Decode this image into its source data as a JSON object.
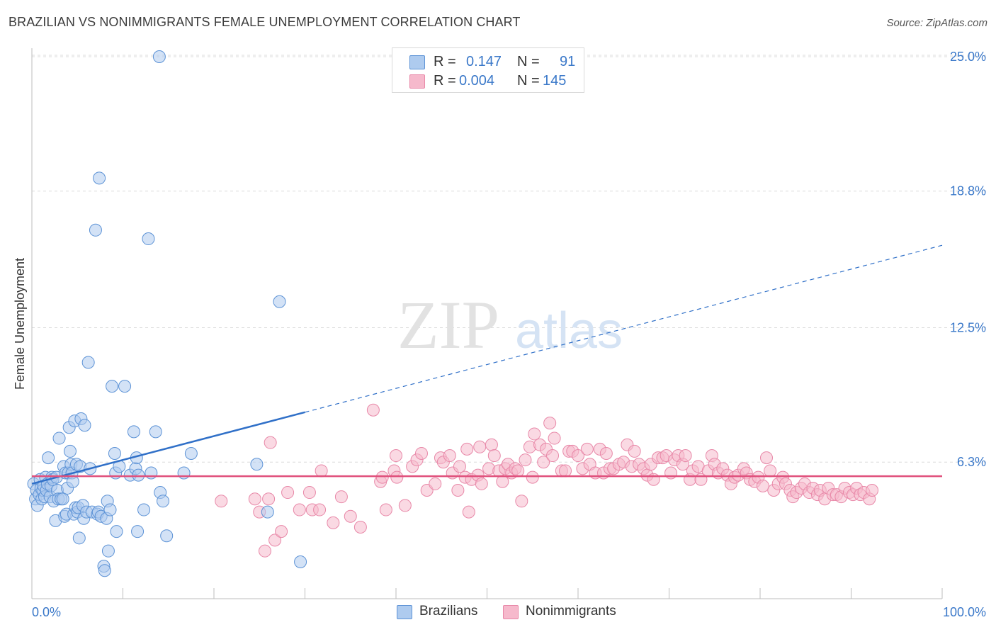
{
  "header": {
    "title": "BRAZILIAN VS NONIMMIGRANTS FEMALE UNEMPLOYMENT CORRELATION CHART",
    "source": "Source: ZipAtlas.com"
  },
  "legend_box": {
    "series_1": {
      "r_label": "R =",
      "r_value": "0.147",
      "n_label": "N =",
      "n_value": "91"
    },
    "series_2": {
      "r_label": "R =",
      "r_value": "0.004",
      "n_label": "N =",
      "n_value": "145"
    }
  },
  "bottom_legend": {
    "series_1": "Brazilians",
    "series_2": "Nonimmigrants"
  },
  "colors": {
    "blue_fill": "#aecbef",
    "blue_stroke": "#5d93d6",
    "blue_line": "#3070c8",
    "pink_fill": "#f6b9cc",
    "pink_stroke": "#e888a8",
    "pink_line": "#e0507c",
    "tick_text": "#3a78c9",
    "grid": "#dcdcdc"
  },
  "chart_data": {
    "type": "scatter",
    "title": "BRAZILIAN VS NONIMMIGRANTS FEMALE UNEMPLOYMENT CORRELATION CHART",
    "xlabel": "",
    "ylabel": "Female Unemployment",
    "xlim": [
      0,
      100
    ],
    "ylim": [
      0,
      26
    ],
    "x_tick_labels": [
      "0.0%",
      "100.0%"
    ],
    "y_ticks": [
      {
        "value": 25.0,
        "label": "25.0%"
      },
      {
        "value": 18.8,
        "label": "18.8%"
      },
      {
        "value": 12.5,
        "label": "12.5%"
      },
      {
        "value": 6.3,
        "label": "6.3%"
      }
    ],
    "watermark": {
      "zip": "ZIP",
      "atlas": "atlas"
    },
    "series": [
      {
        "name": "Brazilians",
        "r": 0.147,
        "n": 91,
        "trend": {
          "x0": 0,
          "y0": 5.3,
          "x_solid_end": 30,
          "x1": 100,
          "y1": 16.3
        },
        "points": [
          [
            0.2,
            5.3
          ],
          [
            0.4,
            4.6
          ],
          [
            0.5,
            5.0
          ],
          [
            0.6,
            4.3
          ],
          [
            0.8,
            4.8
          ],
          [
            0.9,
            5.5
          ],
          [
            1.0,
            5.1
          ],
          [
            1.1,
            4.6
          ],
          [
            1.2,
            5.0
          ],
          [
            1.3,
            5.2
          ],
          [
            1.4,
            4.7
          ],
          [
            1.5,
            5.6
          ],
          [
            1.6,
            5.0
          ],
          [
            1.7,
            5.3
          ],
          [
            1.8,
            6.5
          ],
          [
            2.0,
            4.7
          ],
          [
            2.1,
            5.2
          ],
          [
            2.2,
            5.6
          ],
          [
            2.3,
            5.5
          ],
          [
            2.4,
            4.5
          ],
          [
            2.6,
            3.6
          ],
          [
            2.7,
            5.6
          ],
          [
            2.8,
            5.0
          ],
          [
            2.9,
            4.6
          ],
          [
            3.0,
            7.4
          ],
          [
            3.2,
            4.6
          ],
          [
            3.4,
            4.6
          ],
          [
            3.5,
            6.1
          ],
          [
            3.6,
            3.8
          ],
          [
            3.7,
            5.8
          ],
          [
            3.8,
            3.9
          ],
          [
            3.9,
            5.1
          ],
          [
            4.0,
            5.8
          ],
          [
            4.1,
            7.9
          ],
          [
            4.2,
            6.8
          ],
          [
            4.3,
            6.2
          ],
          [
            4.4,
            5.8
          ],
          [
            4.5,
            5.4
          ],
          [
            4.6,
            3.9
          ],
          [
            4.7,
            8.2
          ],
          [
            4.8,
            4.2
          ],
          [
            4.9,
            6.2
          ],
          [
            5.0,
            4.0
          ],
          [
            5.1,
            4.2
          ],
          [
            5.2,
            2.8
          ],
          [
            5.3,
            6.1
          ],
          [
            5.4,
            8.3
          ],
          [
            5.6,
            4.3
          ],
          [
            5.7,
            3.7
          ],
          [
            5.8,
            8.0
          ],
          [
            6.0,
            4.0
          ],
          [
            6.2,
            10.9
          ],
          [
            6.4,
            6.0
          ],
          [
            6.6,
            4.0
          ],
          [
            7.0,
            17.0
          ],
          [
            7.2,
            3.9
          ],
          [
            7.3,
            4.0
          ],
          [
            7.4,
            19.4
          ],
          [
            7.6,
            3.8
          ],
          [
            7.9,
            1.5
          ],
          [
            8.0,
            1.3
          ],
          [
            8.2,
            3.7
          ],
          [
            8.3,
            4.5
          ],
          [
            8.4,
            2.2
          ],
          [
            8.6,
            4.1
          ],
          [
            8.8,
            9.8
          ],
          [
            9.1,
            6.7
          ],
          [
            9.2,
            5.8
          ],
          [
            9.3,
            3.1
          ],
          [
            9.6,
            6.1
          ],
          [
            10.2,
            9.8
          ],
          [
            10.8,
            5.7
          ],
          [
            11.2,
            7.7
          ],
          [
            11.4,
            6.0
          ],
          [
            11.5,
            6.5
          ],
          [
            11.6,
            3.1
          ],
          [
            11.7,
            5.7
          ],
          [
            12.3,
            4.1
          ],
          [
            12.8,
            16.6
          ],
          [
            13.1,
            5.8
          ],
          [
            13.6,
            7.7
          ],
          [
            14.0,
            25.0
          ],
          [
            14.1,
            4.9
          ],
          [
            14.4,
            4.5
          ],
          [
            14.8,
            2.9
          ],
          [
            16.7,
            5.8
          ],
          [
            17.5,
            6.7
          ],
          [
            24.7,
            6.2
          ],
          [
            25.9,
            4.0
          ],
          [
            27.2,
            13.7
          ],
          [
            29.5,
            1.7
          ]
        ]
      },
      {
        "name": "Nonimmigrants",
        "r": 0.004,
        "n": 145,
        "trend": {
          "x0": 0,
          "y0": 5.65,
          "x1": 100,
          "y1": 5.65
        },
        "points": [
          [
            20.8,
            4.5
          ],
          [
            24.5,
            4.6
          ],
          [
            25.0,
            4.0
          ],
          [
            25.6,
            2.2
          ],
          [
            26.0,
            4.6
          ],
          [
            26.2,
            7.2
          ],
          [
            26.7,
            2.7
          ],
          [
            27.4,
            3.1
          ],
          [
            28.1,
            4.9
          ],
          [
            29.4,
            4.1
          ],
          [
            30.5,
            4.9
          ],
          [
            30.8,
            4.1
          ],
          [
            31.6,
            4.1
          ],
          [
            31.8,
            5.9
          ],
          [
            33.1,
            3.5
          ],
          [
            34.0,
            4.7
          ],
          [
            35.0,
            3.8
          ],
          [
            36.1,
            3.3
          ],
          [
            37.5,
            8.7
          ],
          [
            38.3,
            5.4
          ],
          [
            38.5,
            5.6
          ],
          [
            38.9,
            4.1
          ],
          [
            39.8,
            5.9
          ],
          [
            40.0,
            6.6
          ],
          [
            40.1,
            5.6
          ],
          [
            41.0,
            4.3
          ],
          [
            41.8,
            6.1
          ],
          [
            42.3,
            6.4
          ],
          [
            42.8,
            6.7
          ],
          [
            43.4,
            5.0
          ],
          [
            44.3,
            5.3
          ],
          [
            44.9,
            6.5
          ],
          [
            45.2,
            6.3
          ],
          [
            45.9,
            6.6
          ],
          [
            46.2,
            5.8
          ],
          [
            46.8,
            5.0
          ],
          [
            47.0,
            6.1
          ],
          [
            47.6,
            5.6
          ],
          [
            47.8,
            6.9
          ],
          [
            48.0,
            4.0
          ],
          [
            48.3,
            5.5
          ],
          [
            49.0,
            5.7
          ],
          [
            49.2,
            7.0
          ],
          [
            49.4,
            5.3
          ],
          [
            50.2,
            6.0
          ],
          [
            50.5,
            7.1
          ],
          [
            50.8,
            6.6
          ],
          [
            51.3,
            5.9
          ],
          [
            51.7,
            5.4
          ],
          [
            52.0,
            6.0
          ],
          [
            52.3,
            6.2
          ],
          [
            52.7,
            5.8
          ],
          [
            53.1,
            6.0
          ],
          [
            53.4,
            5.9
          ],
          [
            53.8,
            4.5
          ],
          [
            54.2,
            6.4
          ],
          [
            54.7,
            7.0
          ],
          [
            55.0,
            5.6
          ],
          [
            55.2,
            7.6
          ],
          [
            55.8,
            7.1
          ],
          [
            56.2,
            6.3
          ],
          [
            56.5,
            6.9
          ],
          [
            56.9,
            8.1
          ],
          [
            57.2,
            6.6
          ],
          [
            57.4,
            7.4
          ],
          [
            58.2,
            5.9
          ],
          [
            58.6,
            5.9
          ],
          [
            59.0,
            6.8
          ],
          [
            59.4,
            6.8
          ],
          [
            60.0,
            6.6
          ],
          [
            60.5,
            6.0
          ],
          [
            61.0,
            6.9
          ],
          [
            61.3,
            6.2
          ],
          [
            61.9,
            5.8
          ],
          [
            62.4,
            6.9
          ],
          [
            62.8,
            5.8
          ],
          [
            63.1,
            6.7
          ],
          [
            63.5,
            6.0
          ],
          [
            63.9,
            6.0
          ],
          [
            64.5,
            6.2
          ],
          [
            65.0,
            6.3
          ],
          [
            65.4,
            7.1
          ],
          [
            65.9,
            6.1
          ],
          [
            66.2,
            6.8
          ],
          [
            66.7,
            6.2
          ],
          [
            67.2,
            6.0
          ],
          [
            67.6,
            5.7
          ],
          [
            68.0,
            6.2
          ],
          [
            68.3,
            5.5
          ],
          [
            68.8,
            6.5
          ],
          [
            69.3,
            6.5
          ],
          [
            69.7,
            6.6
          ],
          [
            70.2,
            5.8
          ],
          [
            70.6,
            6.4
          ],
          [
            71.0,
            6.6
          ],
          [
            71.5,
            6.2
          ],
          [
            71.8,
            6.6
          ],
          [
            72.3,
            5.5
          ],
          [
            72.6,
            5.9
          ],
          [
            73.2,
            6.1
          ],
          [
            73.5,
            5.5
          ],
          [
            74.3,
            5.9
          ],
          [
            74.7,
            6.6
          ],
          [
            75.0,
            6.2
          ],
          [
            75.4,
            5.8
          ],
          [
            75.9,
            6.0
          ],
          [
            76.4,
            5.7
          ],
          [
            76.8,
            5.3
          ],
          [
            77.2,
            5.6
          ],
          [
            77.6,
            5.7
          ],
          [
            78.2,
            6.0
          ],
          [
            78.5,
            5.8
          ],
          [
            78.9,
            5.5
          ],
          [
            79.4,
            5.4
          ],
          [
            79.8,
            5.6
          ],
          [
            80.3,
            5.2
          ],
          [
            80.7,
            6.5
          ],
          [
            81.1,
            5.9
          ],
          [
            81.5,
            5.0
          ],
          [
            82.0,
            5.3
          ],
          [
            82.5,
            5.6
          ],
          [
            82.8,
            5.3
          ],
          [
            83.3,
            5.0
          ],
          [
            83.6,
            4.7
          ],
          [
            84.0,
            4.9
          ],
          [
            84.5,
            5.1
          ],
          [
            84.9,
            5.3
          ],
          [
            85.4,
            4.9
          ],
          [
            85.8,
            5.1
          ],
          [
            86.3,
            4.8
          ],
          [
            86.6,
            5.0
          ],
          [
            87.1,
            4.6
          ],
          [
            87.5,
            5.1
          ],
          [
            88.0,
            4.8
          ],
          [
            88.4,
            4.8
          ],
          [
            88.9,
            4.7
          ],
          [
            89.3,
            5.1
          ],
          [
            89.8,
            4.9
          ],
          [
            90.2,
            4.8
          ],
          [
            90.6,
            5.1
          ],
          [
            91.0,
            4.8
          ],
          [
            91.4,
            4.9
          ],
          [
            92.0,
            4.6
          ],
          [
            92.3,
            5.0
          ]
        ]
      }
    ]
  }
}
